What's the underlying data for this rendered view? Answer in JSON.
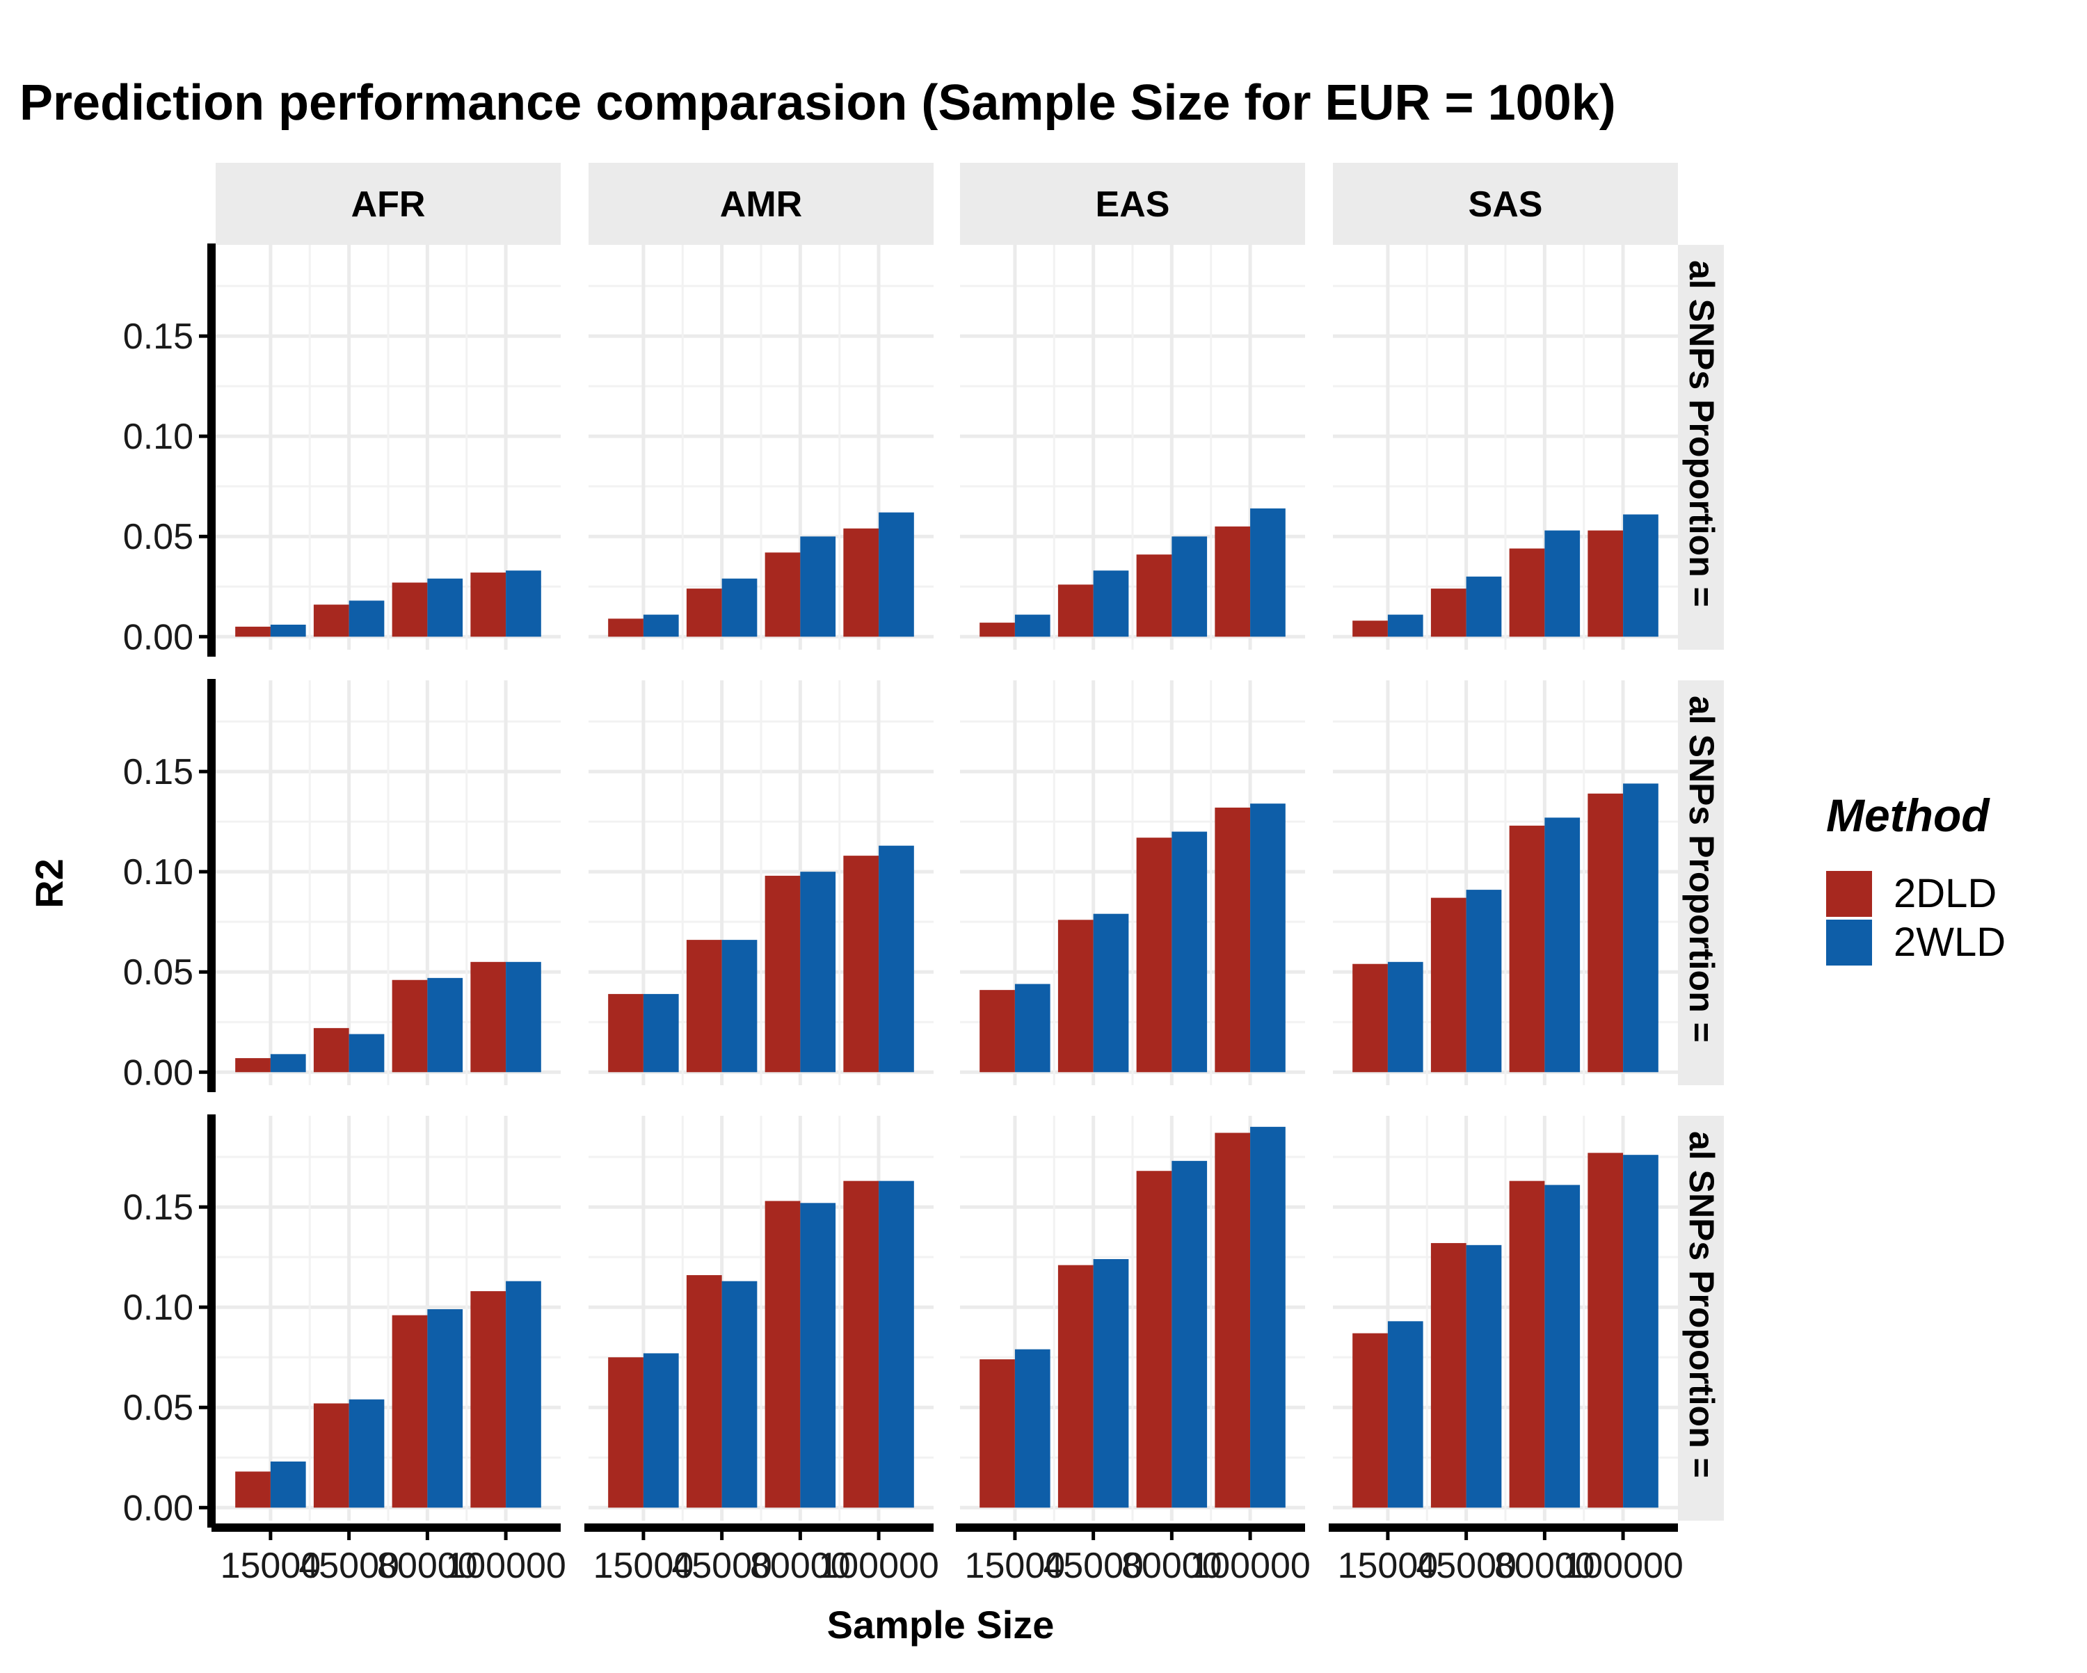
{
  "chart_data": {
    "type": "bar",
    "title": "Prediction performance comparasion (Sample Size for EUR = 100k)",
    "xlabel": "Sample Size",
    "ylabel": "R2",
    "ylim": [
      0,
      0.2
    ],
    "yticks": [
      "0.00",
      "0.05",
      "0.10",
      "0.15"
    ],
    "categories": [
      "15000",
      "45000",
      "80000",
      "100000"
    ],
    "grid": true,
    "legend": {
      "title": "Method",
      "position": "right",
      "entries": [
        {
          "name": "2DLD",
          "color": "#a7281f"
        },
        {
          "name": "2WLD",
          "color": "#0e5ea8"
        }
      ]
    },
    "facet_columns": [
      "AFR",
      "AMR",
      "EAS",
      "SAS"
    ],
    "facet_rows": [
      "al SNPs Proportion =",
      "al SNPs Proportion =",
      "al SNPs Proportion ="
    ],
    "panels": [
      [
        {
          "series": [
            {
              "name": "2DLD",
              "values": [
                0.005,
                0.016,
                0.027,
                0.032
              ]
            },
            {
              "name": "2WLD",
              "values": [
                0.006,
                0.018,
                0.029,
                0.033
              ]
            }
          ]
        },
        {
          "series": [
            {
              "name": "2DLD",
              "values": [
                0.009,
                0.024,
                0.042,
                0.054
              ]
            },
            {
              "name": "2WLD",
              "values": [
                0.011,
                0.029,
                0.05,
                0.062
              ]
            }
          ]
        },
        {
          "series": [
            {
              "name": "2DLD",
              "values": [
                0.007,
                0.026,
                0.041,
                0.055
              ]
            },
            {
              "name": "2WLD",
              "values": [
                0.011,
                0.033,
                0.05,
                0.064
              ]
            }
          ]
        },
        {
          "series": [
            {
              "name": "2DLD",
              "values": [
                0.008,
                0.024,
                0.044,
                0.053
              ]
            },
            {
              "name": "2WLD",
              "values": [
                0.011,
                0.03,
                0.053,
                0.061
              ]
            }
          ]
        }
      ],
      [
        {
          "series": [
            {
              "name": "2DLD",
              "values": [
                0.007,
                0.022,
                0.046,
                0.055
              ]
            },
            {
              "name": "2WLD",
              "values": [
                0.009,
                0.019,
                0.047,
                0.055
              ]
            }
          ]
        },
        {
          "series": [
            {
              "name": "2DLD",
              "values": [
                0.039,
                0.066,
                0.098,
                0.108
              ]
            },
            {
              "name": "2WLD",
              "values": [
                0.039,
                0.066,
                0.1,
                0.113
              ]
            }
          ]
        },
        {
          "series": [
            {
              "name": "2DLD",
              "values": [
                0.041,
                0.076,
                0.117,
                0.132
              ]
            },
            {
              "name": "2WLD",
              "values": [
                0.044,
                0.079,
                0.12,
                0.134
              ]
            }
          ]
        },
        {
          "series": [
            {
              "name": "2DLD",
              "values": [
                0.054,
                0.087,
                0.123,
                0.139
              ]
            },
            {
              "name": "2WLD",
              "values": [
                0.055,
                0.091,
                0.127,
                0.144
              ]
            }
          ]
        }
      ],
      [
        {
          "series": [
            {
              "name": "2DLD",
              "values": [
                0.018,
                0.052,
                0.096,
                0.108
              ]
            },
            {
              "name": "2WLD",
              "values": [
                0.023,
                0.054,
                0.099,
                0.113
              ]
            }
          ]
        },
        {
          "series": [
            {
              "name": "2DLD",
              "values": [
                0.075,
                0.116,
                0.153,
                0.163
              ]
            },
            {
              "name": "2WLD",
              "values": [
                0.077,
                0.113,
                0.152,
                0.163
              ]
            }
          ]
        },
        {
          "series": [
            {
              "name": "2DLD",
              "values": [
                0.074,
                0.121,
                0.168,
                0.187
              ]
            },
            {
              "name": "2WLD",
              "values": [
                0.079,
                0.124,
                0.173,
                0.19
              ]
            }
          ]
        },
        {
          "series": [
            {
              "name": "2DLD",
              "values": [
                0.087,
                0.132,
                0.163,
                0.177
              ]
            },
            {
              "name": "2WLD",
              "values": [
                0.093,
                0.131,
                0.161,
                0.176
              ]
            }
          ]
        }
      ]
    ]
  }
}
